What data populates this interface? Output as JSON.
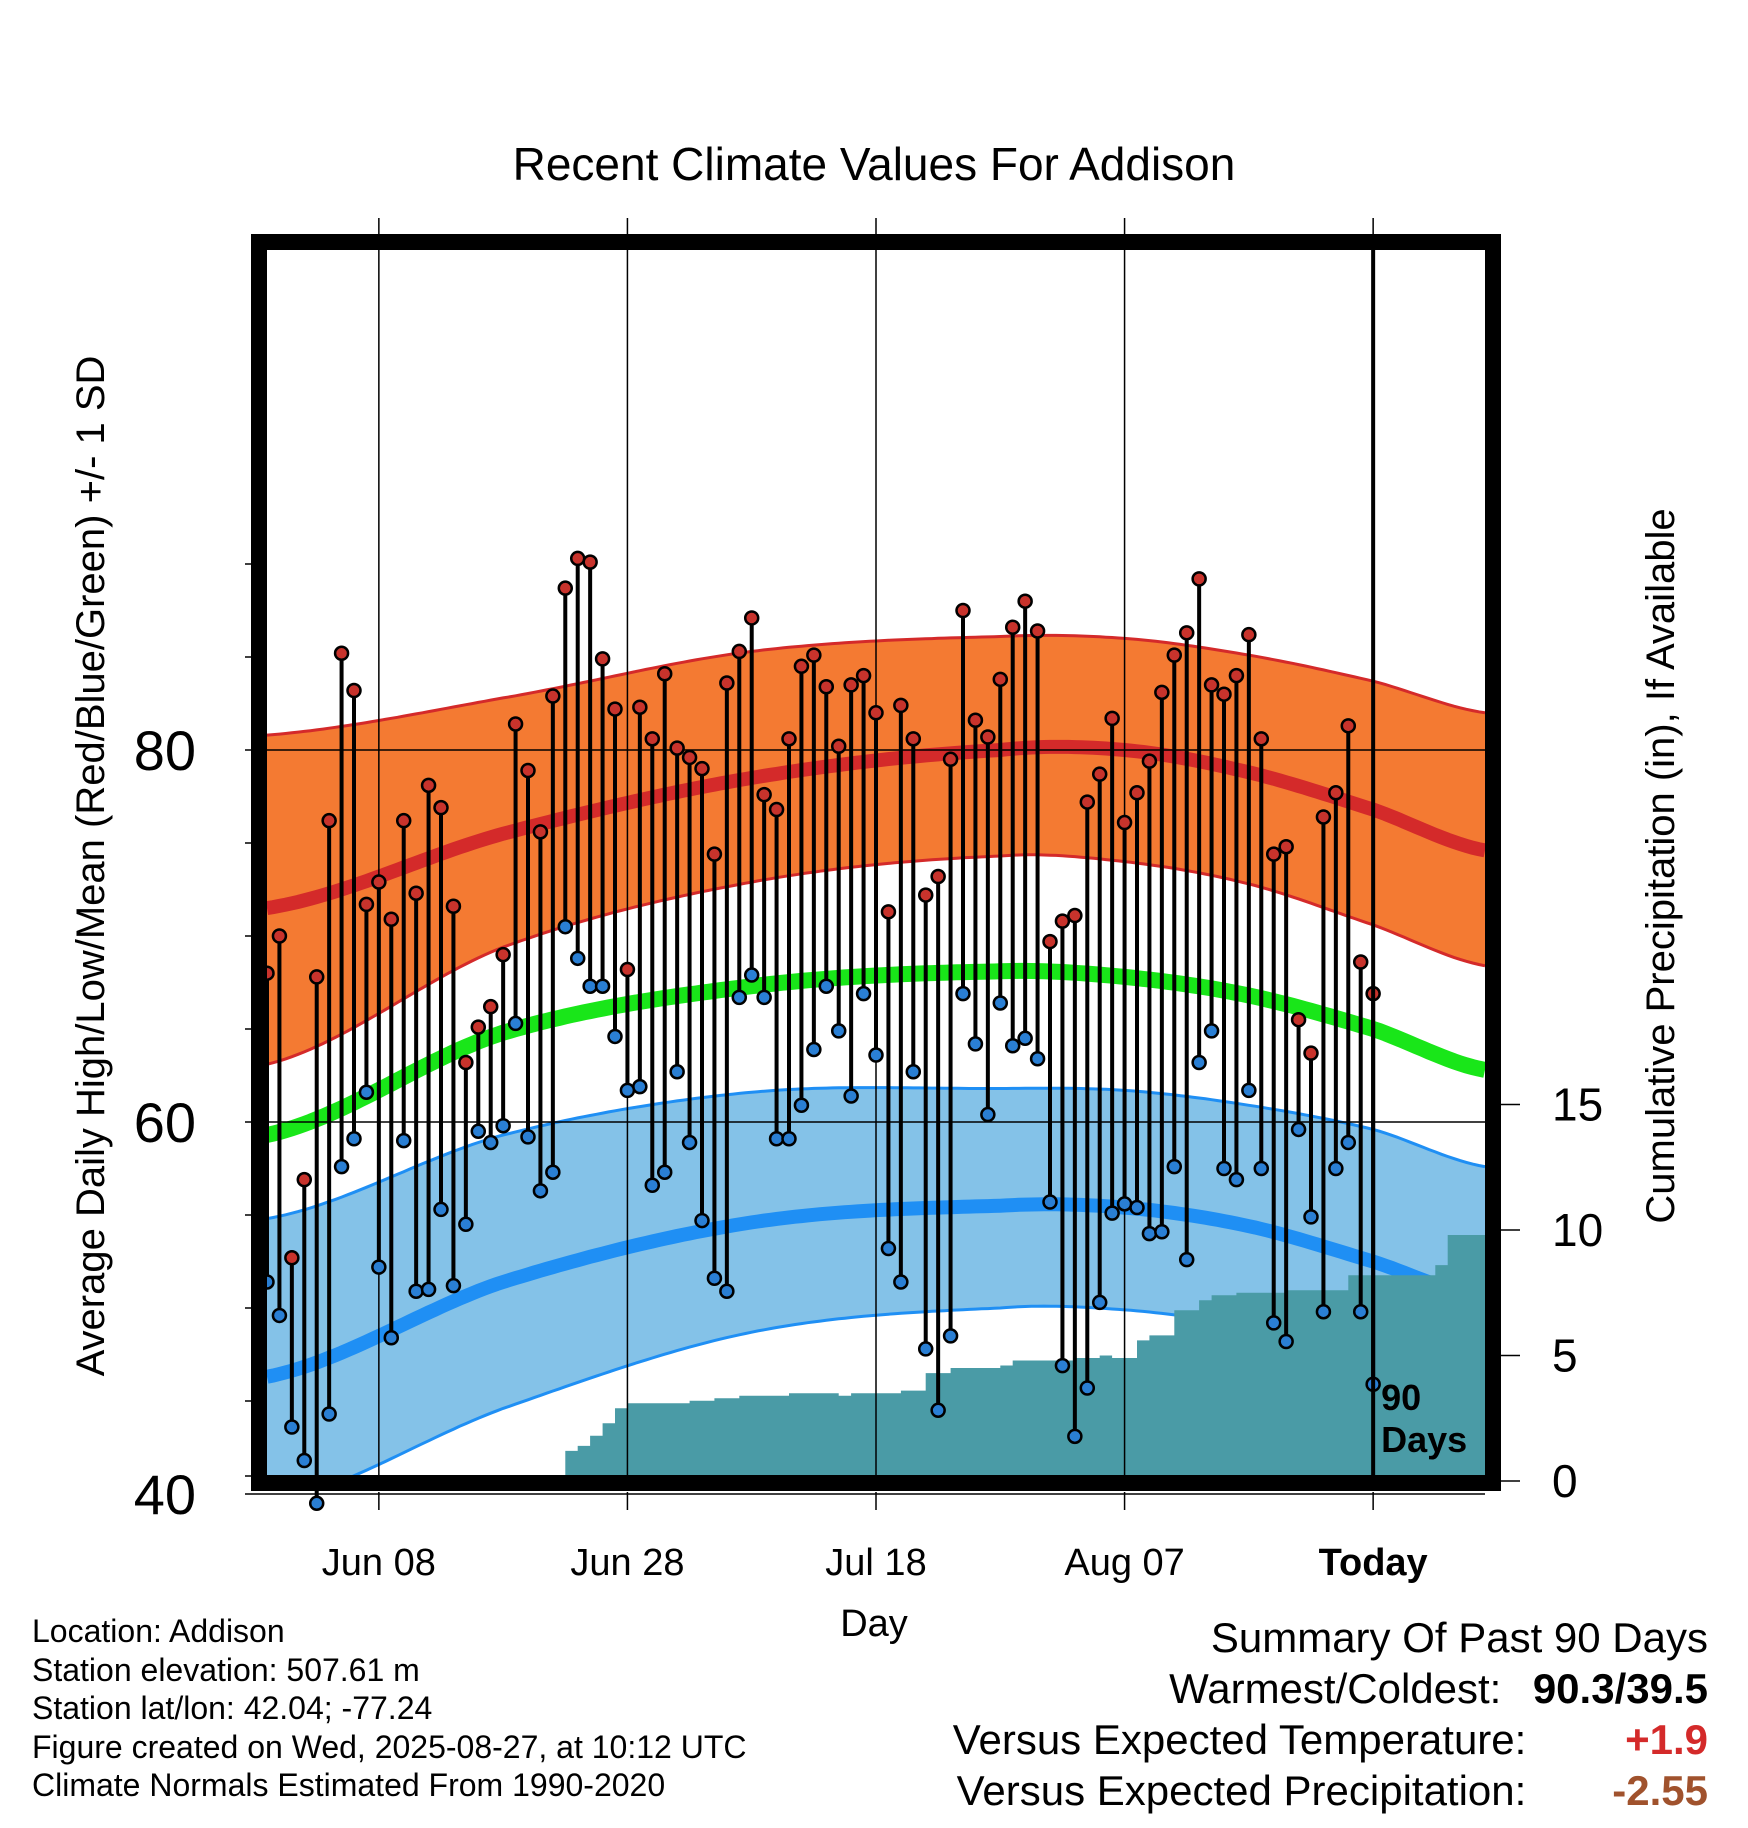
{
  "chart_data": {
    "type": "line",
    "title": "Recent Climate Values For Addison",
    "xlabel": "Day",
    "ylabel_left": "Average Daily High/Low/Mean (Red/Blue/Green) +/- 1 SD",
    "ylabel_right": "Cumulative Precipitation (in), If Available",
    "x_tick_labels": [
      "Jun 08",
      "Jun 28",
      "Jul 18",
      "Aug 07",
      "Today"
    ],
    "y_ticks_left": [
      40,
      60,
      80
    ],
    "y_ticks_right": [
      0,
      5,
      10,
      15
    ],
    "ylim_left": [
      30,
      95
    ],
    "ylim_right": [
      0,
      50
    ],
    "day_range": [
      -89,
      9
    ],
    "grid": true,
    "today_marker": {
      "x": 0,
      "label_line1": "90",
      "label_line2": "Days"
    },
    "normals": {
      "days": [
        -89,
        -70,
        -50,
        -30,
        -20,
        -10,
        0,
        9
      ],
      "high_mean": [
        71.5,
        75.5,
        78.5,
        80.0,
        80.0,
        78.8,
        76.8,
        74.6
      ],
      "high_sd_upper": [
        80.8,
        82.8,
        85.3,
        86.1,
        86.0,
        85.1,
        83.7,
        82.0
      ],
      "high_sd_lower": [
        63.1,
        69.4,
        72.9,
        74.3,
        74.0,
        72.8,
        70.6,
        68.4
      ],
      "mean": [
        59.3,
        64.8,
        67.3,
        68.1,
        67.8,
        66.8,
        65.0,
        62.8
      ],
      "low_mean": [
        46.3,
        51.4,
        54.6,
        55.5,
        55.4,
        54.4,
        52.5,
        50.5
      ],
      "low_sd_upper": [
        54.8,
        59.3,
        61.6,
        61.8,
        61.7,
        60.9,
        59.6,
        57.6
      ],
      "low_sd_lower": [
        39.4,
        44.6,
        48.7,
        50.0,
        49.9,
        49.0,
        47.4,
        44.3
      ]
    },
    "daily": {
      "start_day": -89,
      "highs": [
        68.0,
        70.0,
        52.7,
        56.9,
        67.8,
        76.2,
        85.2,
        83.2,
        71.7,
        72.9,
        70.9,
        76.2,
        72.3,
        78.1,
        76.9,
        71.6,
        63.2,
        65.1,
        66.2,
        69.0,
        81.4,
        78.9,
        75.6,
        82.9,
        88.7,
        90.3,
        90.1,
        84.9,
        82.2,
        68.2,
        82.3,
        80.6,
        84.1,
        80.1,
        79.6,
        79.0,
        74.4,
        83.6,
        85.3,
        87.1,
        77.6,
        76.8,
        80.6,
        84.5,
        85.1,
        83.4,
        80.2,
        83.5,
        84.0,
        82.0,
        71.3,
        82.4,
        80.6,
        72.2,
        73.2,
        79.5,
        87.5,
        81.6,
        80.7,
        83.8,
        86.6,
        88.0,
        86.4,
        69.7,
        70.8,
        71.1,
        77.2,
        78.7,
        81.7,
        76.1,
        77.7,
        79.4,
        83.1,
        85.1,
        86.3,
        89.2,
        83.5,
        83.0,
        84.0,
        86.2,
        80.6,
        74.4,
        74.8,
        65.5,
        63.7,
        76.4,
        77.7,
        81.3,
        68.6,
        66.9
      ],
      "lows": [
        51.4,
        49.6,
        43.6,
        41.8,
        39.5,
        44.3,
        57.6,
        59.1,
        61.6,
        52.2,
        48.4,
        59.0,
        50.9,
        51.0,
        55.3,
        51.2,
        54.5,
        59.5,
        58.9,
        59.8,
        65.3,
        59.2,
        56.3,
        57.3,
        70.5,
        68.8,
        67.3,
        67.3,
        64.6,
        61.7,
        61.9,
        56.6,
        57.3,
        62.7,
        58.9,
        54.7,
        51.6,
        50.9,
        66.7,
        67.9,
        66.7,
        59.1,
        59.1,
        60.9,
        63.9,
        67.3,
        64.9,
        61.4,
        66.9,
        63.6,
        53.2,
        51.4,
        62.7,
        47.8,
        44.5,
        48.5,
        66.9,
        64.2,
        60.4,
        66.4,
        64.1,
        64.5,
        63.4,
        55.7,
        46.9,
        43.1,
        45.7,
        50.3,
        55.1,
        55.6,
        55.4,
        54.0,
        54.1,
        57.6,
        52.6,
        63.2,
        64.9,
        57.5,
        56.9,
        61.7,
        57.5,
        49.2,
        48.2,
        59.6,
        54.9,
        49.8,
        57.5,
        58.9,
        49.8,
        45.9
      ]
    },
    "precip_cumulative": {
      "days": [
        -89,
        -66,
        -65,
        -64,
        -63,
        -62,
        -61,
        -60,
        -59,
        -58,
        -57,
        -50,
        -49,
        -45,
        -40,
        -39,
        -36,
        -35,
        -30,
        -28,
        -25,
        -15,
        -14,
        -12,
        -11,
        -8,
        -7,
        -3,
        -2,
        6,
        9
      ],
      "values": [
        0.0,
        0.0,
        1.3,
        1.5,
        1.8,
        2.4,
        2.8,
        3.1,
        3.1,
        3.2,
        3.3,
        3.3,
        3.6,
        3.6,
        3.4,
        3.9,
        4.2,
        4.9,
        5.0,
        5.5,
        5.6,
        5.9,
        6.7,
        7.6,
        7.8,
        7.8,
        8.0,
        8.2,
        8.4,
        10.0,
        10.0
      ]
    },
    "precip_steps": [
      [
        -89,
        0.0
      ],
      [
        -66,
        0.0
      ],
      [
        -65,
        1.2
      ],
      [
        -64,
        1.4
      ],
      [
        -63,
        1.8
      ],
      [
        -62,
        2.3
      ],
      [
        -61,
        2.9
      ],
      [
        -60,
        3.1
      ],
      [
        -55,
        3.2
      ],
      [
        -53,
        3.3
      ],
      [
        -51,
        3.4
      ],
      [
        -47,
        3.5
      ],
      [
        -43,
        3.4
      ],
      [
        -42,
        3.5
      ],
      [
        -38,
        3.6
      ],
      [
        -36,
        4.3
      ],
      [
        -35,
        4.3
      ],
      [
        -34,
        4.5
      ],
      [
        -30,
        4.6
      ],
      [
        -29,
        4.8
      ],
      [
        -24,
        4.9
      ],
      [
        -22,
        5.0
      ],
      [
        -21,
        4.9
      ],
      [
        -19,
        5.6
      ],
      [
        -18,
        5.8
      ],
      [
        -16,
        6.8
      ],
      [
        -14,
        7.2
      ],
      [
        -13,
        7.4
      ],
      [
        -11,
        7.5
      ],
      [
        -7,
        7.6
      ],
      [
        -5,
        7.6
      ],
      [
        -3,
        7.6
      ],
      [
        -2,
        8.2
      ],
      [
        4,
        8.2
      ],
      [
        5,
        8.6
      ],
      [
        6,
        9.8
      ],
      [
        9,
        9.8
      ]
    ],
    "colors": {
      "high_band": "#f47a32",
      "high_line": "#d42a2a",
      "low_band": "#84c2e8",
      "low_line": "#1f8ff4",
      "mean_line": "#19e619",
      "precip": "#4a9ba6",
      "high_dot": "#c8332c",
      "low_dot": "#2a7fd4"
    }
  },
  "summary": {
    "title": "Summary Of Past 90 Days",
    "warmest_coldest_label": "Warmest/Coldest:",
    "warmest_coldest_value": "90.3/39.5",
    "temp_label": "Versus Expected Temperature:",
    "temp_value": "+1.9",
    "temp_color": "#d42a2a",
    "precip_label": "Versus Expected Precipitation:",
    "precip_value": "-2.55",
    "precip_color": "#a0522d"
  },
  "info": {
    "location": "Location: Addison",
    "elevation": "Station elevation: 507.61 m",
    "latlon": "Station lat/lon: 42.04; -77.24",
    "created": "Figure created on Wed, 2025-08-27, at 10:12 UTC",
    "normals": "Climate Normals Estimated From 1990-2020"
  }
}
